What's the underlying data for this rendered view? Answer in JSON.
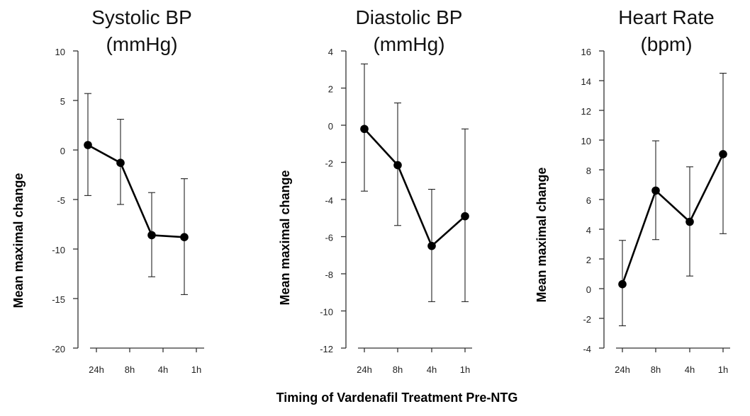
{
  "chart_data": [
    {
      "type": "line",
      "title": [
        "Systolic BP",
        "(mmHg)"
      ],
      "xlabel": "Timing of Vardenafil Treatment Pre-NTG",
      "ylabel": "Mean maximal change",
      "categories": [
        "24h",
        "8h",
        "4h",
        "1h"
      ],
      "ylim": [
        -20,
        10
      ],
      "yticks": [
        10,
        5,
        0,
        -5,
        -10,
        -15,
        -20
      ],
      "grid": false,
      "series": [
        {
          "name": "Systolic BP",
          "values": [
            0.5,
            -1.3,
            -8.6,
            -8.8
          ],
          "error_upper": [
            5.7,
            3.1,
            -4.3,
            -2.9
          ],
          "error_lower": [
            -4.6,
            -5.5,
            -12.8,
            -14.6
          ]
        }
      ]
    },
    {
      "type": "line",
      "title": [
        "Diastolic BP",
        "(mmHg)"
      ],
      "xlabel": "Timing of Vardenafil Treatment Pre-NTG",
      "ylabel": "Mean maximal change",
      "categories": [
        "24h",
        "8h",
        "4h",
        "1h"
      ],
      "ylim": [
        -12,
        4
      ],
      "yticks": [
        4,
        2,
        0,
        -2,
        -4,
        -6,
        -8,
        -10,
        -12
      ],
      "grid": false,
      "series": [
        {
          "name": "Diastolic BP",
          "values": [
            -0.2,
            -2.15,
            -6.5,
            -4.9
          ],
          "error_upper": [
            3.3,
            1.2,
            -3.45,
            -0.2
          ],
          "error_lower": [
            -3.55,
            -5.4,
            -9.5,
            -9.5
          ]
        }
      ]
    },
    {
      "type": "line",
      "title": [
        "Heart Rate",
        "(bpm)"
      ],
      "xlabel": "Timing of Vardenafil Treatment Pre-NTG",
      "ylabel": "Mean maximal change",
      "categories": [
        "24h",
        "8h",
        "4h",
        "1h"
      ],
      "ylim": [
        -4,
        16
      ],
      "yticks": [
        16,
        14,
        12,
        10,
        8,
        6,
        4,
        2,
        0,
        -2,
        -4
      ],
      "grid": false,
      "series": [
        {
          "name": "Heart Rate",
          "values": [
            0.3,
            6.6,
            4.5,
            9.05
          ],
          "error_upper": [
            3.25,
            9.95,
            8.2,
            14.5
          ],
          "error_lower": [
            -2.5,
            3.3,
            0.85,
            3.7
          ]
        }
      ]
    }
  ],
  "figure": {
    "shared_xlabel": "Timing of Vardenafil Treatment Pre-NTG"
  }
}
